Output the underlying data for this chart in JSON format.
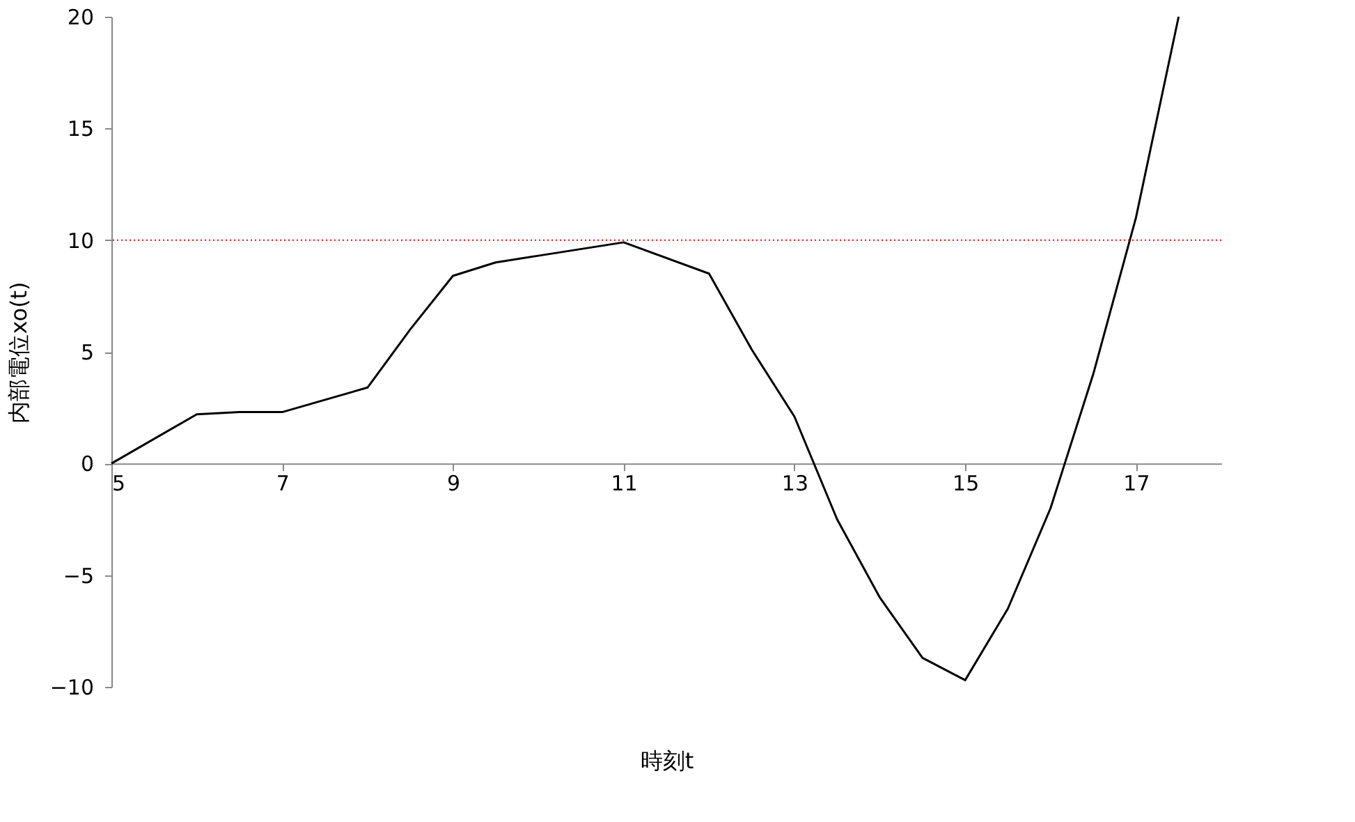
{
  "chart_data": {
    "type": "line",
    "xlabel": "時刻t",
    "ylabel": "内部電位xo(t)",
    "x": [
      5,
      6,
      6.5,
      7,
      8,
      8.5,
      9,
      9.5,
      10,
      11,
      12,
      12.5,
      13,
      13.5,
      14,
      14.5,
      15,
      15.5,
      16,
      16.5,
      17,
      17.5
    ],
    "series": [
      {
        "color": "#000000",
        "values": [
          0,
          2.2,
          2.3,
          2.3,
          3.4,
          6,
          8.4,
          9,
          9.3,
          9.9,
          8.5,
          5.1,
          2.1,
          -2.5,
          -6,
          -8.7,
          -9.7,
          -6.5,
          -2,
          4,
          11,
          20
        ]
      }
    ],
    "xlim": [
      5,
      18
    ],
    "xticks": [
      5,
      7,
      9,
      11,
      13,
      15,
      17
    ],
    "ylim": [
      -10,
      20
    ],
    "yticks": [
      -10,
      -5,
      0,
      5,
      10,
      15,
      20
    ],
    "ref_lines": [
      {
        "axis": "y",
        "value": 10,
        "color": "#ff0000",
        "line_style": "dotted"
      }
    ],
    "grid": false,
    "marker": "none",
    "line_style": "solid"
  }
}
